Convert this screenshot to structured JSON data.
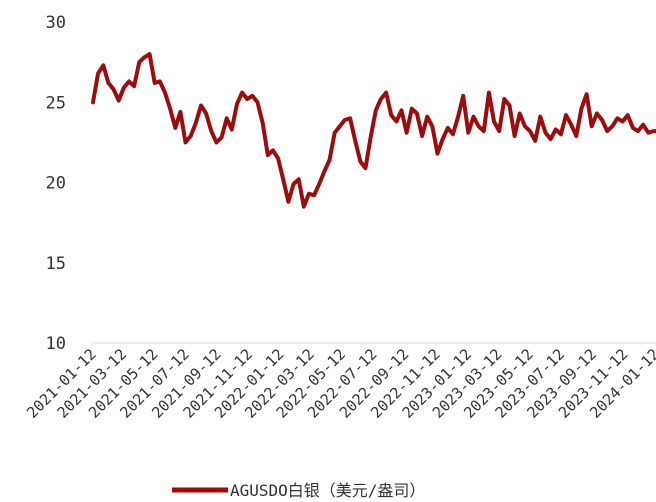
{
  "chart_data": {
    "type": "line",
    "title": "",
    "xlabel": "",
    "ylabel": "",
    "ylim": [
      10,
      30
    ],
    "yticks": [
      "30",
      "25",
      "20",
      "15",
      "10"
    ],
    "xticks": [
      "2021-01-12",
      "2021-03-12",
      "2021-05-12",
      "2021-07-12",
      "2021-09-12",
      "2021-11-12",
      "2022-01-12",
      "2022-03-12",
      "2022-05-12",
      "2022-07-12",
      "2022-09-12",
      "2022-11-12",
      "2023-01-12",
      "2023-03-12",
      "2023-05-12",
      "2023-07-12",
      "2023-09-12",
      "2023-11-12",
      "2024-01-12"
    ],
    "grid": false,
    "legend": "bottom",
    "color": "#9B0D0D",
    "series": [
      {
        "name": "AGUSDO白银（美元/盎司）",
        "x": [
          "2021-01-12",
          "2021-01-22",
          "2021-02-01",
          "2021-02-11",
          "2021-02-21",
          "2021-03-03",
          "2021-03-13",
          "2021-03-23",
          "2021-04-02",
          "2021-04-12",
          "2021-04-22",
          "2021-05-02",
          "2021-05-12",
          "2021-05-22",
          "2021-06-01",
          "2021-06-11",
          "2021-06-21",
          "2021-07-01",
          "2021-07-11",
          "2021-07-21",
          "2021-07-31",
          "2021-08-10",
          "2021-08-20",
          "2021-08-30",
          "2021-09-09",
          "2021-09-19",
          "2021-09-29",
          "2021-10-09",
          "2021-10-19",
          "2021-10-29",
          "2021-11-08",
          "2021-11-18",
          "2021-11-28",
          "2021-12-08",
          "2021-12-18",
          "2021-12-28",
          "2022-01-07",
          "2022-01-17",
          "2022-01-27",
          "2022-02-06",
          "2022-02-16",
          "2022-02-26",
          "2022-03-08",
          "2022-03-18",
          "2022-03-28",
          "2022-04-07",
          "2022-04-17",
          "2022-04-27",
          "2022-05-07",
          "2022-05-17",
          "2022-05-27",
          "2022-06-06",
          "2022-06-16",
          "2022-06-26",
          "2022-07-06",
          "2022-07-16",
          "2022-07-26",
          "2022-08-05",
          "2022-08-15",
          "2022-08-25",
          "2022-09-04",
          "2022-09-14",
          "2022-09-24",
          "2022-10-04",
          "2022-10-14",
          "2022-10-24",
          "2022-11-03",
          "2022-11-13",
          "2022-11-23",
          "2022-12-03",
          "2022-12-13",
          "2022-12-23",
          "2023-01-02",
          "2023-01-12",
          "2023-01-22",
          "2023-02-01",
          "2023-02-11",
          "2023-02-21",
          "2023-03-03",
          "2023-03-13",
          "2023-03-23",
          "2023-04-02",
          "2023-04-12",
          "2023-04-22",
          "2023-05-02",
          "2023-05-12",
          "2023-05-22",
          "2023-06-01",
          "2023-06-11",
          "2023-06-21",
          "2023-07-01",
          "2023-07-11",
          "2023-07-21",
          "2023-07-31",
          "2023-08-10",
          "2023-08-20",
          "2023-08-30",
          "2023-09-09",
          "2023-09-19",
          "2023-09-29",
          "2023-10-09",
          "2023-10-19",
          "2023-10-29",
          "2023-11-08",
          "2023-11-18",
          "2023-11-28",
          "2023-12-08",
          "2023-12-18",
          "2023-12-28",
          "2024-01-07",
          "2024-01-12"
        ],
        "values": [
          25.0,
          26.8,
          27.3,
          26.2,
          25.8,
          25.1,
          25.9,
          26.3,
          26.0,
          27.5,
          27.8,
          28.0,
          26.2,
          26.3,
          25.6,
          24.6,
          23.4,
          24.4,
          22.5,
          22.9,
          23.7,
          24.8,
          24.3,
          23.2,
          22.5,
          22.8,
          24.0,
          23.3,
          24.9,
          25.6,
          25.2,
          25.4,
          25.0,
          23.7,
          21.7,
          22.0,
          21.5,
          20.2,
          18.8,
          19.9,
          20.2,
          18.5,
          19.3,
          19.2,
          19.9,
          20.7,
          21.4,
          23.1,
          23.5,
          23.9,
          24.0,
          22.6,
          21.3,
          20.9,
          22.8,
          24.5,
          25.2,
          25.6,
          24.2,
          23.8,
          24.5,
          23.1,
          24.6,
          24.3,
          22.9,
          24.1,
          23.5,
          21.8,
          22.7,
          23.4,
          23.0,
          24.1,
          25.4,
          23.1,
          24.1,
          23.5,
          23.2,
          25.6,
          23.8,
          23.2,
          25.2,
          24.8,
          22.9,
          24.3,
          23.5,
          23.2,
          22.6,
          24.1,
          23.1,
          22.7,
          23.3,
          23.0,
          24.2,
          23.6,
          22.9,
          24.6,
          25.5,
          23.5,
          24.3,
          23.9,
          23.2,
          23.5,
          24.0,
          23.8,
          24.2,
          23.4,
          23.2,
          23.6,
          23.1,
          23.2,
          23.2
        ]
      }
    ]
  }
}
